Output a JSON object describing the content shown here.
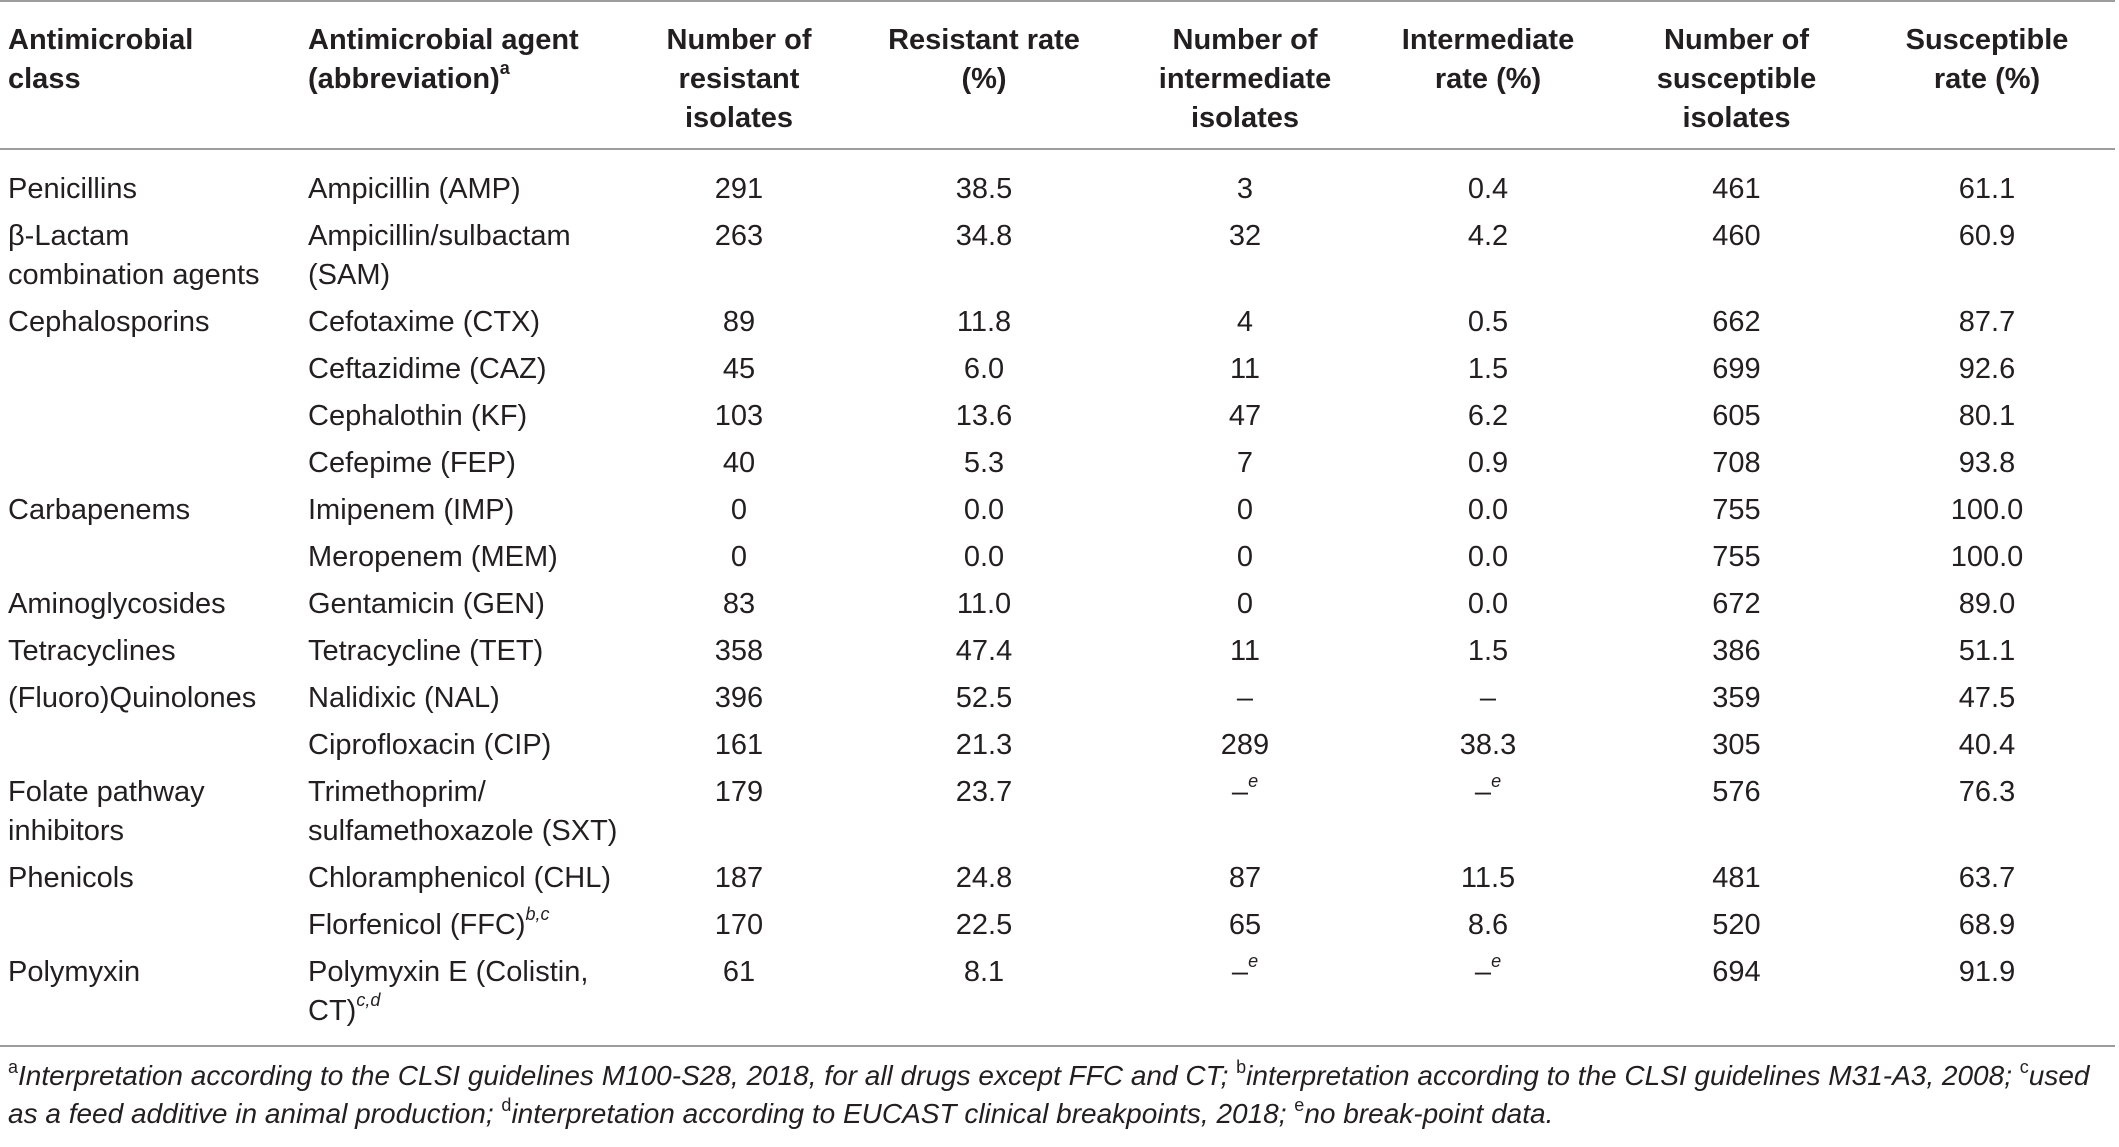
{
  "header": {
    "class": [
      "Antimicrobial",
      "class"
    ],
    "agent": [
      "Antimicrobial agent",
      "(abbreviation)"
    ],
    "agent_sup": "a",
    "n_resistant": [
      "Number of",
      "resistant",
      "isolates"
    ],
    "resistant_rate": [
      "Resistant rate",
      "(%)"
    ],
    "n_intermediate": [
      "Number of",
      "intermediate",
      "isolates"
    ],
    "intermediate_rate": [
      "Intermediate",
      "rate (%)"
    ],
    "n_susceptible": [
      "Number of",
      "susceptible",
      "isolates"
    ],
    "susceptible_rate": [
      "Susceptible",
      "rate (%)"
    ]
  },
  "rows": [
    {
      "cls": [
        "Penicillins"
      ],
      "agent": [
        "Ampicillin (AMP)"
      ],
      "agent_sup": "",
      "r": "291",
      "rr": "38.5",
      "i": "3",
      "ir": "0.4",
      "i_sup": "",
      "ir_sup": "",
      "s": "461",
      "sr": "61.1"
    },
    {
      "cls": [
        "β-Lactam",
        "combination agents"
      ],
      "agent": [
        "Ampicillin/sulbactam",
        "(SAM)"
      ],
      "agent_sup": "",
      "r": "263",
      "rr": "34.8",
      "i": "32",
      "ir": "4.2",
      "i_sup": "",
      "ir_sup": "",
      "s": "460",
      "sr": "60.9"
    },
    {
      "cls": [
        "Cephalosporins"
      ],
      "agent": [
        "Cefotaxime (CTX)"
      ],
      "agent_sup": "",
      "r": "89",
      "rr": "11.8",
      "i": "4",
      "ir": "0.5",
      "i_sup": "",
      "ir_sup": "",
      "s": "662",
      "sr": "87.7"
    },
    {
      "cls": [],
      "agent": [
        "Ceftazidime (CAZ)"
      ],
      "agent_sup": "",
      "r": "45",
      "rr": "6.0",
      "i": "11",
      "ir": "1.5",
      "i_sup": "",
      "ir_sup": "",
      "s": "699",
      "sr": "92.6"
    },
    {
      "cls": [],
      "agent": [
        "Cephalothin (KF)"
      ],
      "agent_sup": "",
      "r": "103",
      "rr": "13.6",
      "i": "47",
      "ir": "6.2",
      "i_sup": "",
      "ir_sup": "",
      "s": "605",
      "sr": "80.1"
    },
    {
      "cls": [],
      "agent": [
        "Cefepime (FEP)"
      ],
      "agent_sup": "",
      "r": "40",
      "rr": "5.3",
      "i": "7",
      "ir": "0.9",
      "i_sup": "",
      "ir_sup": "",
      "s": "708",
      "sr": "93.8"
    },
    {
      "cls": [
        "Carbapenems"
      ],
      "agent": [
        "Imipenem (IMP)"
      ],
      "agent_sup": "",
      "r": "0",
      "rr": "0.0",
      "i": "0",
      "ir": "0.0",
      "i_sup": "",
      "ir_sup": "",
      "s": "755",
      "sr": "100.0"
    },
    {
      "cls": [],
      "agent": [
        "Meropenem (MEM)"
      ],
      "agent_sup": "",
      "r": "0",
      "rr": "0.0",
      "i": "0",
      "ir": "0.0",
      "i_sup": "",
      "ir_sup": "",
      "s": "755",
      "sr": "100.0"
    },
    {
      "cls": [
        "Aminoglycosides"
      ],
      "agent": [
        "Gentamicin (GEN)"
      ],
      "agent_sup": "",
      "r": "83",
      "rr": "11.0",
      "i": "0",
      "ir": "0.0",
      "i_sup": "",
      "ir_sup": "",
      "s": "672",
      "sr": "89.0"
    },
    {
      "cls": [
        "Tetracyclines"
      ],
      "agent": [
        "Tetracycline (TET)"
      ],
      "agent_sup": "",
      "r": "358",
      "rr": "47.4",
      "i": "11",
      "ir": "1.5",
      "i_sup": "",
      "ir_sup": "",
      "s": "386",
      "sr": "51.1"
    },
    {
      "cls": [
        "(Fluoro)Quinolones"
      ],
      "agent": [
        "Nalidixic (NAL)"
      ],
      "agent_sup": "",
      "r": "396",
      "rr": "52.5",
      "i": "–",
      "ir": "–",
      "i_sup": "",
      "ir_sup": "",
      "s": "359",
      "sr": "47.5"
    },
    {
      "cls": [],
      "agent": [
        "Ciprofloxacin (CIP)"
      ],
      "agent_sup": "",
      "r": "161",
      "rr": "21.3",
      "i": "289",
      "ir": "38.3",
      "i_sup": "",
      "ir_sup": "",
      "s": "305",
      "sr": "40.4"
    },
    {
      "cls": [
        "Folate pathway",
        "inhibitors"
      ],
      "agent": [
        "Trimethoprim/",
        "sulfamethoxazole (SXT)"
      ],
      "agent_sup": "",
      "r": "179",
      "rr": "23.7",
      "i": "–",
      "ir": "–",
      "i_sup": "e",
      "ir_sup": "e",
      "s": "576",
      "sr": "76.3"
    },
    {
      "cls": [
        "Phenicols"
      ],
      "agent": [
        "Chloramphenicol (CHL)"
      ],
      "agent_sup": "",
      "r": "187",
      "rr": "24.8",
      "i": "87",
      "ir": "11.5",
      "i_sup": "",
      "ir_sup": "",
      "s": "481",
      "sr": "63.7"
    },
    {
      "cls": [],
      "agent": [
        "Florfenicol (FFC)"
      ],
      "agent_sup": "b,c",
      "r": "170",
      "rr": "22.5",
      "i": "65",
      "ir": "8.6",
      "i_sup": "",
      "ir_sup": "",
      "s": "520",
      "sr": "68.9"
    },
    {
      "cls": [
        "Polymyxin"
      ],
      "agent": [
        "Polymyxin E (Colistin,",
        "CT)"
      ],
      "agent_sup": "c,d",
      "r": "61",
      "rr": "8.1",
      "i": "–",
      "ir": "–",
      "i_sup": "e",
      "ir_sup": "e",
      "s": "694",
      "sr": "91.9"
    }
  ],
  "footnote": [
    {
      "sup": "a",
      "text": "Interpretation according to the CLSI guidelines M100-S28, 2018, for all drugs except FFC and CT; "
    },
    {
      "sup": "b",
      "text": "interpretation according to the CLSI guidelines M31-A3, 2008; "
    },
    {
      "sup": "c",
      "text": "used as a feed additive in animal production; "
    },
    {
      "sup": "d",
      "text": "interpretation according to EUCAST clinical breakpoints, 2018; "
    },
    {
      "sup": "e",
      "text": "no break-point data."
    }
  ]
}
